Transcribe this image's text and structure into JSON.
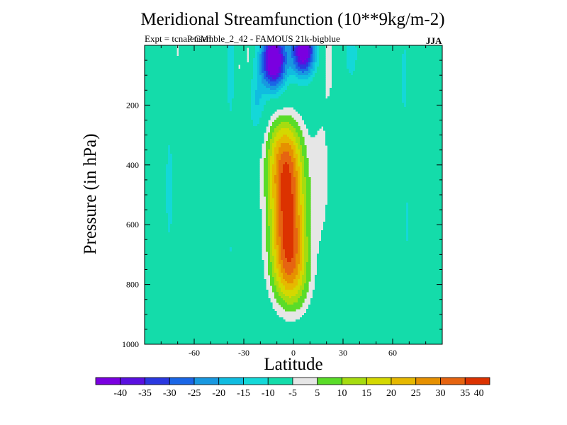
{
  "chart_data": {
    "type": "contour",
    "title": "Meridional Streamfunction (10**9kg/m-2)",
    "subtitle": "Expt = tcnaP CMI",
    "subtitle_overlap": "ensemble_2_42 - FAMOUS 21k-bigblue",
    "season": "JJA",
    "xlabel": "Latitude",
    "ylabel": "Pressure (in hPa)",
    "xlim": [
      -90,
      90
    ],
    "ylim": [
      1000,
      0
    ],
    "x_ticks": [
      {
        "value": -60,
        "label": "-60"
      },
      {
        "value": -30,
        "label": "-30"
      },
      {
        "value": 0,
        "label": "0"
      },
      {
        "value": 30,
        "label": "30"
      },
      {
        "value": 60,
        "label": "60"
      }
    ],
    "y_ticks": [
      {
        "value": 200,
        "label": "200"
      },
      {
        "value": 400,
        "label": "400"
      },
      {
        "value": 600,
        "label": "600"
      },
      {
        "value": 800,
        "label": "800"
      },
      {
        "value": 1000,
        "label": "1000"
      }
    ],
    "background_color": "#e6e6e6",
    "levels": [
      -40,
      -35,
      -30,
      -25,
      -20,
      -15,
      -10,
      -5,
      5,
      10,
      15,
      20,
      25,
      30,
      35,
      40
    ],
    "level_labels": [
      "-40",
      "-35",
      "-30",
      "-25",
      "-20",
      "-15",
      "-10",
      "-5",
      "5",
      "10",
      "15",
      "20",
      "25",
      "30",
      "35",
      "40"
    ],
    "colors": [
      "#7a00e0",
      "#5a10e0",
      "#2a38e0",
      "#1a66e6",
      "#1898e0",
      "#10bce0",
      "#14d8d8",
      "#14dcaa",
      "#e6e6e6",
      "#5adc28",
      "#a6dc10",
      "#d4d800",
      "#e6b800",
      "#e69000",
      "#e66410",
      "#dc3200"
    ],
    "features": [
      {
        "name": "southern-hemisphere-cell",
        "sign": "positive",
        "peak": 40,
        "lat_range": [
          -20,
          22
        ],
        "pressure_range": [
          150,
          975
        ]
      },
      {
        "name": "upper-negative-cell",
        "sign": "negative",
        "peak": -40,
        "lat_range": [
          -28,
          14
        ],
        "pressure_range": [
          20,
          190
        ]
      }
    ]
  }
}
